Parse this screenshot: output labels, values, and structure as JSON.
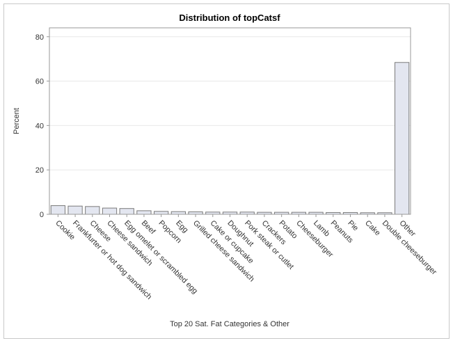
{
  "chart_data": {
    "type": "bar",
    "title": "Distribution of topCatsf",
    "xlabel": "Top 20 Sat. Fat Categories & Other",
    "ylabel": "Percent",
    "ylim": [
      0,
      84
    ],
    "yticks": [
      0,
      20,
      40,
      60,
      80
    ],
    "grid": true,
    "categories": [
      "Cookie",
      "Frankfurter or hot dog sandwich",
      "Cheese",
      "Cheese sandwich",
      "Egg omelet or scrambled egg",
      "Beef",
      "Popcorn",
      "Egg",
      "Grilled cheese sandwich",
      "Cake or cupcake",
      "Doughnut",
      "Pork steak or cutlet",
      "Crackers",
      "Potato",
      "Cheeseburger",
      "Lamb",
      "Peanuts",
      "Pie",
      "Cake",
      "Double cheeseburger",
      "Other"
    ],
    "values": [
      3.9,
      3.7,
      3.5,
      2.8,
      2.6,
      1.6,
      1.3,
      1.2,
      1.1,
      1.0,
      1.0,
      1.0,
      0.9,
      0.9,
      0.9,
      0.9,
      0.8,
      0.8,
      0.7,
      0.7,
      68.4
    ],
    "colors": {
      "bar_fill": "#e3e6f0",
      "bar_stroke": "#7a7a7a",
      "grid": "#e8e8e8",
      "axis": "#999999"
    }
  }
}
